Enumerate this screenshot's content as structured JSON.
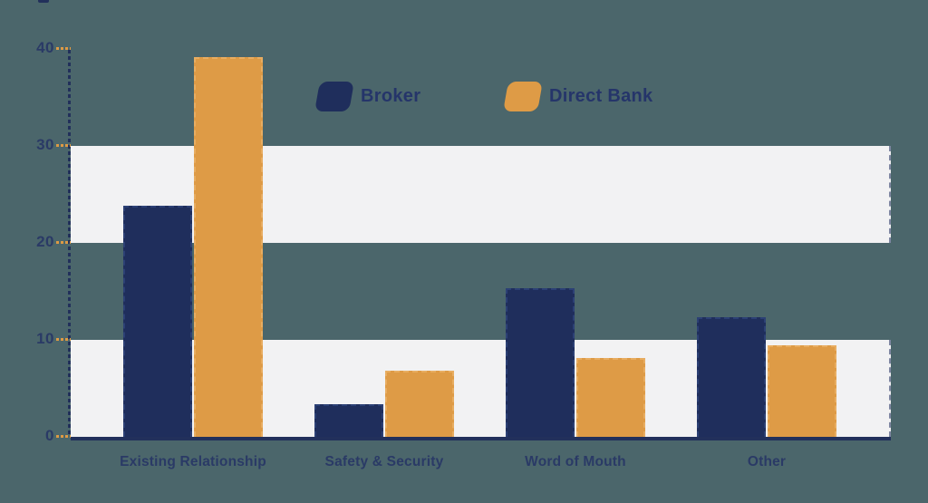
{
  "page": {
    "background_color": "#4b666b",
    "band_color": "#f2f2f3",
    "axis_color": "#22305b",
    "tick_color": "#dd9a45",
    "text_color": "#2a3a66"
  },
  "chart_data": {
    "type": "bar",
    "categories": [
      "Existing Relationship",
      "Safety & Security",
      "Word of Mouth",
      "Other"
    ],
    "series": [
      {
        "name": "Broker",
        "color": "#1f2e5c",
        "border_color": "#2c4075",
        "values": [
          23.8,
          3.4,
          15.3,
          12.3
        ]
      },
      {
        "name": "Direct Bank",
        "color": "#de9b46",
        "border_color": "#e8ad61",
        "values": [
          39.2,
          6.8,
          8.1,
          9.4
        ]
      }
    ],
    "xlabel": "",
    "ylabel": "",
    "yticks": [
      0,
      10,
      20,
      30,
      40
    ],
    "ylim": [
      0,
      40
    ],
    "grid": "alternating horizontal bands (0-10 and 20-30 highlighted)",
    "band_ranges": [
      [
        0,
        10
      ],
      [
        20,
        30
      ]
    ],
    "legend_position": "top-center"
  }
}
